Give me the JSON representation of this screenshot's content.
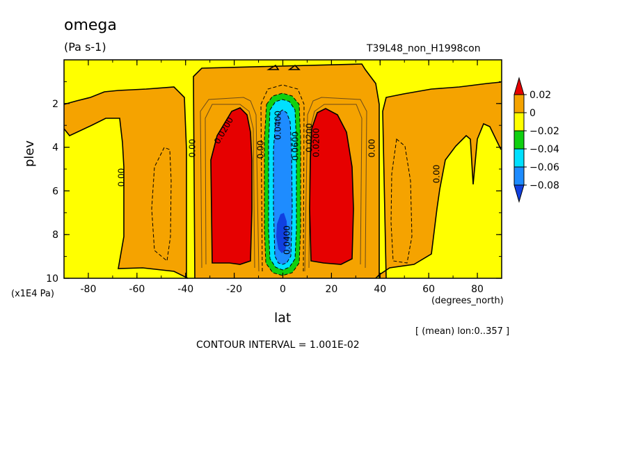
{
  "chart_data": {
    "type": "heatmap",
    "title": "omega",
    "units": "(Pa s-1)",
    "experiment": "T39L48_non_H1998con",
    "xlabel": "lat",
    "xunits": "(degrees_north)",
    "ylabel": "plev",
    "yunits": "(x1E4 Pa)",
    "subset_note": "[ (mean) lon:0..357 ]",
    "contour_interval_text": "CONTOUR INTERVAL = 1.001E-02",
    "xlim": [
      -90,
      90
    ],
    "ylim": [
      10,
      0
    ],
    "x_ticks": [
      "-80",
      "-60",
      "-40",
      "-20",
      "0",
      "20",
      "40",
      "60",
      "80"
    ],
    "x_tick_values": [
      -80,
      -60,
      -40,
      -20,
      0,
      20,
      40,
      60,
      80
    ],
    "y_ticks": [
      "2",
      "4",
      "6",
      "8",
      "10"
    ],
    "y_tick_values": [
      2,
      4,
      6,
      8,
      10
    ],
    "colorbar": {
      "labels": [
        "0.02",
        "0",
        "−0.02",
        "−0.04",
        "−0.06",
        "−0.08"
      ],
      "levels": [
        0.02,
        0,
        -0.02,
        -0.04,
        -0.06,
        -0.08
      ],
      "colors": [
        "#e60000",
        "#f5a300",
        "#ffff00",
        "#10d010",
        "#00e0ff",
        "#1e8cff",
        "#1040e0"
      ]
    },
    "contour_labels": [
      "0.00",
      "0.00",
      "0.0200",
      "0.00",
      "0.0200",
      "0.0400",
      "0.0600",
      "0.0400",
      "0.0200",
      "0.00",
      "0.00"
    ]
  }
}
